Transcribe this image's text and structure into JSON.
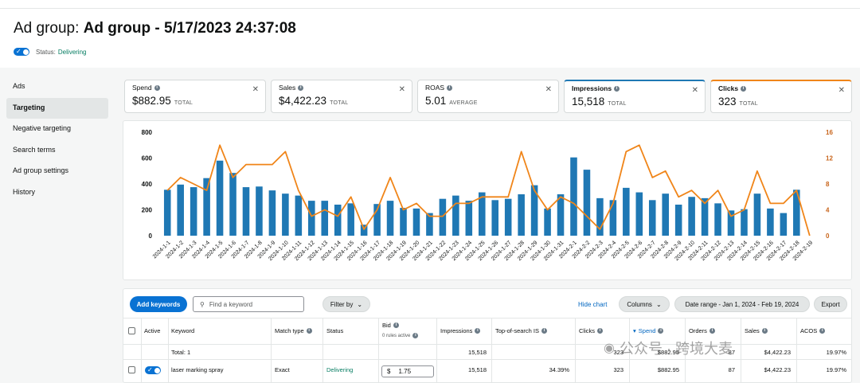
{
  "header": {
    "title_prefix": "Ad group:",
    "title_name": "Ad group - 5/17/2023 24:37:08",
    "status_label": "Status:",
    "status_value": "Delivering"
  },
  "sidebar": {
    "items": [
      {
        "label": "Ads",
        "active": false
      },
      {
        "label": "Targeting",
        "active": true
      },
      {
        "label": "Negative targeting",
        "active": false
      },
      {
        "label": "Search terms",
        "active": false
      },
      {
        "label": "Ad group settings",
        "active": false
      },
      {
        "label": "History",
        "active": false
      }
    ]
  },
  "metrics": [
    {
      "label": "Spend",
      "value": "$882.95",
      "unit": "TOTAL"
    },
    {
      "label": "Sales",
      "value": "$4,422.23",
      "unit": "TOTAL"
    },
    {
      "label": "ROAS",
      "value": "5.01",
      "unit": "AVERAGE"
    },
    {
      "label": "Impressions",
      "value": "15,518",
      "unit": "TOTAL"
    },
    {
      "label": "Clicks",
      "value": "323",
      "unit": "TOTAL"
    }
  ],
  "colors": {
    "impressions": "#1f78b4",
    "clicks": "#f08519",
    "primary": "#0972d3",
    "delivering": "#067d62"
  },
  "chart_data": {
    "type": "bar",
    "categories": [
      "2024-1-1",
      "2024-1-2",
      "2024-1-3",
      "2024-1-4",
      "2024-1-5",
      "2024-1-6",
      "2024-1-7",
      "2024-1-8",
      "2024-1-9",
      "2024-1-10",
      "2024-1-11",
      "2024-1-12",
      "2024-1-13",
      "2024-1-14",
      "2024-1-15",
      "2024-1-16",
      "2024-1-17",
      "2024-1-18",
      "2024-1-19",
      "2024-1-20",
      "2024-1-21",
      "2024-1-22",
      "2024-1-23",
      "2024-1-24",
      "2024-1-25",
      "2024-1-26",
      "2024-1-27",
      "2024-1-28",
      "2024-1-29",
      "2024-1-30",
      "2024-1-31",
      "2024-2-1",
      "2024-2-2",
      "2024-2-3",
      "2024-2-4",
      "2024-2-5",
      "2024-2-6",
      "2024-2-7",
      "2024-2-8",
      "2024-2-9",
      "2024-2-10",
      "2024-2-11",
      "2024-2-12",
      "2024-2-13",
      "2024-2-14",
      "2024-2-15",
      "2024-2-16",
      "2024-2-17",
      "2024-2-18",
      "2024-2-19"
    ],
    "series": [
      {
        "name": "Impressions",
        "type": "bar",
        "axis": "left",
        "values": [
          355,
          395,
          375,
          445,
          580,
          485,
          375,
          380,
          350,
          325,
          310,
          270,
          270,
          240,
          250,
          85,
          245,
          270,
          215,
          210,
          175,
          285,
          310,
          270,
          335,
          275,
          285,
          320,
          390,
          210,
          320,
          605,
          510,
          290,
          275,
          370,
          335,
          275,
          325,
          240,
          300,
          290,
          250,
          195,
          205,
          325,
          210,
          175,
          355,
          0
        ]
      },
      {
        "name": "Clicks",
        "type": "line",
        "axis": "right",
        "values": [
          7,
          9,
          8,
          7,
          14,
          9,
          11,
          11,
          11,
          13,
          7,
          3,
          4,
          3,
          6,
          1,
          4,
          9,
          4,
          5,
          3,
          3,
          5,
          5,
          6,
          6,
          6,
          13,
          7,
          4,
          6,
          5,
          3,
          1,
          5,
          13,
          14,
          9,
          10,
          6,
          7,
          5,
          7,
          3,
          4,
          10,
          5,
          5,
          7,
          0
        ]
      }
    ],
    "ylim_left": [
      0,
      800
    ],
    "yticks_left": [
      0,
      200,
      400,
      600,
      800
    ],
    "ylim_right": [
      0,
      16
    ],
    "yticks_right": [
      0,
      4,
      8,
      12,
      16
    ],
    "grid": false,
    "legend": "none"
  },
  "toolbar": {
    "add_keywords": "Add keywords",
    "search_placeholder": "Find a keyword",
    "filter_by": "Filter by",
    "hide_chart": "Hide chart",
    "columns": "Columns",
    "date_range": "Date range - Jan 1, 2024 - Feb 19, 2024",
    "export": "Export"
  },
  "table": {
    "headers": {
      "active": "Active",
      "keyword": "Keyword",
      "match_type": "Match type",
      "status": "Status",
      "bid": "Bid",
      "bid_sub": "0 rules active",
      "impressions": "Impressions",
      "top_of_search": "Top-of-search IS",
      "clicks": "Clicks",
      "spend": "Spend",
      "orders": "Orders",
      "sales": "Sales",
      "acos": "ACOS"
    },
    "total": {
      "label": "Total: 1",
      "impressions": "15,518",
      "clicks": "323",
      "spend": "$882.95",
      "orders": "87",
      "sales": "$4,422.23",
      "acos": "19.97%"
    },
    "rows": [
      {
        "keyword": "laser marking spray",
        "match_type": "Exact",
        "status": "Delivering",
        "bid_currency": "$",
        "bid": "1.75",
        "impressions": "15,518",
        "top_of_search": "34.39%",
        "clicks": "323",
        "spend": "$882.95",
        "orders": "87",
        "sales": "$4,422.23",
        "acos": "19.97%"
      }
    ]
  },
  "watermark": "公众号 · 跨境大麦"
}
